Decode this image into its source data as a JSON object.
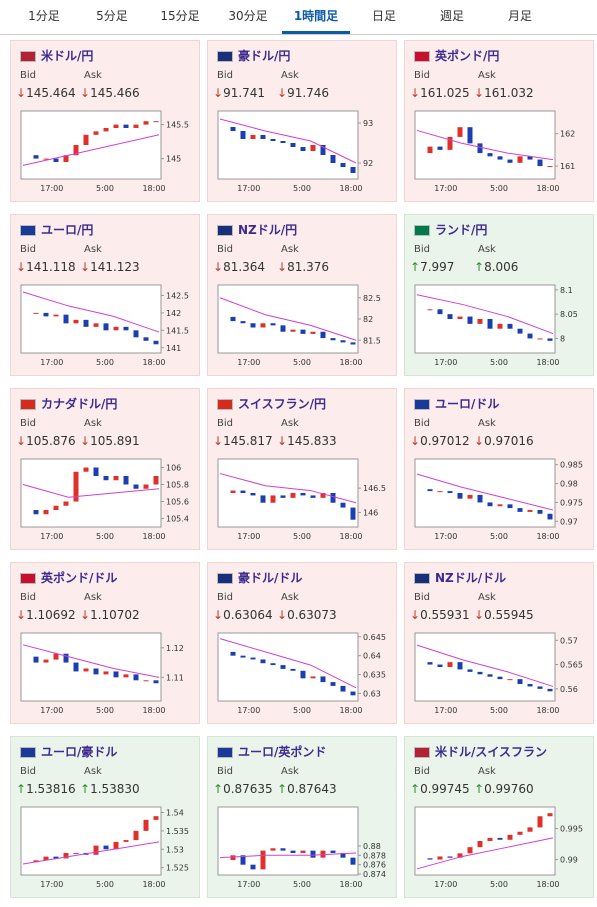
{
  "tabs": [
    "1分足",
    "5分足",
    "15分足",
    "30分足",
    "1時間足",
    "日足",
    "週足",
    "月足"
  ],
  "active_tab": 4,
  "labels": {
    "bid": "Bid",
    "ask": "Ask"
  },
  "time_labels": [
    "17:00",
    "5:00",
    "18:00"
  ],
  "cards": [
    {
      "pair": "米ドル/円",
      "flag": "#b22234",
      "trend": "down",
      "arrow": "↓",
      "bid": "145.464",
      "ask": "145.466",
      "chart": {
        "ylim": [
          144.7,
          145.7
        ],
        "yticks": [
          145,
          145.5
        ],
        "values": [
          145.05,
          145.0,
          145.0,
          144.95,
          145.05,
          145.2,
          145.35,
          145.4,
          145.45,
          145.5,
          145.45,
          145.5,
          145.55,
          145.55
        ],
        "ma": [
          144.9,
          145.05,
          145.2,
          145.35
        ]
      }
    },
    {
      "pair": "豪ドル/円",
      "flag": "#1a2f7a",
      "trend": "down",
      "arrow": "↓",
      "bid": "91.741",
      "ask": "91.746",
      "chart": {
        "ylim": [
          91.6,
          93.3
        ],
        "yticks": [
          92,
          93
        ],
        "values": [
          92.9,
          92.8,
          92.6,
          92.7,
          92.6,
          92.55,
          92.5,
          92.4,
          92.3,
          92.45,
          92.2,
          92.0,
          91.9,
          91.75
        ],
        "ma": [
          93.1,
          92.8,
          92.55,
          92.0
        ]
      }
    },
    {
      "pair": "英ポンド/円",
      "flag": "#c8102e",
      "trend": "down",
      "arrow": "↓",
      "bid": "161.025",
      "ask": "161.032",
      "chart": {
        "ylim": [
          160.6,
          162.7
        ],
        "yticks": [
          161,
          162
        ],
        "values": [
          161.4,
          161.6,
          161.5,
          161.9,
          162.2,
          161.7,
          161.4,
          161.3,
          161.2,
          161.1,
          161.3,
          161.2,
          161.0,
          161.0
        ],
        "ma": [
          162.1,
          161.7,
          161.4,
          161.2
        ]
      }
    },
    {
      "pair": "ユーロ/円",
      "flag": "#1a3a9a",
      "trend": "down",
      "arrow": "↓",
      "bid": "141.118",
      "ask": "141.123",
      "chart": {
        "ylim": [
          140.85,
          142.8
        ],
        "yticks": [
          141,
          141.5,
          142,
          142.5
        ],
        "values": [
          142.0,
          142.0,
          141.9,
          141.95,
          141.7,
          141.8,
          141.6,
          141.7,
          141.5,
          141.6,
          141.5,
          141.3,
          141.2,
          141.1
        ],
        "ma": [
          142.6,
          142.2,
          141.9,
          141.45
        ]
      }
    },
    {
      "pair": "NZドル/円",
      "flag": "#1a2f7a",
      "trend": "down",
      "arrow": "↓",
      "bid": "81.364",
      "ask": "81.376",
      "chart": {
        "ylim": [
          81.2,
          82.8
        ],
        "yticks": [
          81.5,
          82,
          82.5
        ],
        "values": [
          82.05,
          81.95,
          81.9,
          81.8,
          81.9,
          81.85,
          81.7,
          81.75,
          81.65,
          81.7,
          81.55,
          81.5,
          81.45,
          81.4
        ],
        "ma": [
          82.5,
          82.1,
          81.85,
          81.5
        ]
      }
    },
    {
      "pair": "ランド/円",
      "flag": "#007a4d",
      "trend": "up",
      "arrow": "↑",
      "bid": "7.997",
      "ask": "8.006",
      "chart": {
        "ylim": [
          7.97,
          8.11
        ],
        "yticks": [
          8,
          8.05,
          8.1
        ],
        "values": [
          8.06,
          8.06,
          8.05,
          8.04,
          8.045,
          8.03,
          8.04,
          8.02,
          8.03,
          8.02,
          8.01,
          8.0,
          8.0,
          7.995
        ],
        "ma": [
          8.09,
          8.07,
          8.045,
          8.01
        ]
      }
    },
    {
      "pair": "カナダドル/円",
      "flag": "#d52b1e",
      "trend": "down",
      "arrow": "↓",
      "bid": "105.876",
      "ask": "105.891",
      "chart": {
        "ylim": [
          105.3,
          106.1
        ],
        "yticks": [
          105.4,
          105.6,
          105.8,
          106
        ],
        "values": [
          105.5,
          105.45,
          105.5,
          105.55,
          105.6,
          105.95,
          106.0,
          105.9,
          105.85,
          105.9,
          105.8,
          105.75,
          105.8,
          105.9
        ],
        "ma": [
          105.8,
          105.65,
          105.7,
          105.75
        ]
      }
    },
    {
      "pair": "スイスフラン/円",
      "flag": "#d52b1e",
      "trend": "down",
      "arrow": "↓",
      "bid": "145.817",
      "ask": "145.833",
      "chart": {
        "ylim": [
          145.7,
          147.1
        ],
        "yticks": [
          146,
          146.5
        ],
        "values": [
          146.4,
          146.45,
          146.4,
          146.35,
          146.2,
          146.35,
          146.3,
          146.4,
          146.35,
          146.3,
          146.4,
          146.2,
          146.1,
          145.85
        ],
        "ma": [
          146.8,
          146.55,
          146.45,
          146.2
        ]
      }
    },
    {
      "pair": "ユーロ/ドル",
      "flag": "#1a3a9a",
      "trend": "down",
      "arrow": "↓",
      "bid": "0.97012",
      "ask": "0.97016",
      "chart": {
        "ylim": [
          0.9685,
          0.9865
        ],
        "yticks": [
          0.97,
          0.975,
          0.98,
          0.985
        ],
        "values": [
          0.9785,
          0.978,
          0.978,
          0.9775,
          0.976,
          0.977,
          0.975,
          0.974,
          0.9745,
          0.9735,
          0.9725,
          0.973,
          0.972,
          0.9705
        ],
        "ma": [
          0.9825,
          0.979,
          0.976,
          0.973
        ]
      }
    },
    {
      "pair": "英ポンド/ドル",
      "flag": "#c8102e",
      "trend": "down",
      "arrow": "↓",
      "bid": "1.10692",
      "ask": "1.10702",
      "chart": {
        "ylim": [
          1.102,
          1.125
        ],
        "yticks": [
          1.11,
          1.12
        ],
        "values": [
          1.117,
          1.115,
          1.116,
          1.118,
          1.115,
          1.112,
          1.113,
          1.111,
          1.112,
          1.11,
          1.111,
          1.109,
          1.109,
          1.108
        ],
        "ma": [
          1.121,
          1.117,
          1.113,
          1.11
        ]
      }
    },
    {
      "pair": "豪ドル/ドル",
      "flag": "#1a2f7a",
      "trend": "down",
      "arrow": "↓",
      "bid": "0.63064",
      "ask": "0.63073",
      "chart": {
        "ylim": [
          0.628,
          0.646
        ],
        "yticks": [
          0.63,
          0.635,
          0.64,
          0.645
        ],
        "values": [
          0.641,
          0.64,
          0.6395,
          0.639,
          0.638,
          0.6375,
          0.6365,
          0.636,
          0.634,
          0.6345,
          0.633,
          0.632,
          0.6305,
          0.6295
        ],
        "ma": [
          0.6445,
          0.641,
          0.6375,
          0.6315
        ]
      }
    },
    {
      "pair": "NZドル/ドル",
      "flag": "#1a2f7a",
      "trend": "down",
      "arrow": "↓",
      "bid": "0.55931",
      "ask": "0.55945",
      "chart": {
        "ylim": [
          0.5575,
          0.5715
        ],
        "yticks": [
          0.56,
          0.565,
          0.57
        ],
        "values": [
          0.5655,
          0.565,
          0.5645,
          0.5655,
          0.564,
          0.5635,
          0.563,
          0.5625,
          0.562,
          0.562,
          0.561,
          0.5605,
          0.56,
          0.5595
        ],
        "ma": [
          0.569,
          0.566,
          0.5635,
          0.5605
        ]
      }
    },
    {
      "pair": "ユーロ/豪ドル",
      "flag": "#1a3a9a",
      "trend": "up",
      "arrow": "↑",
      "bid": "1.53816",
      "ask": "1.53830",
      "chart": {
        "ylim": [
          1.523,
          1.5415
        ],
        "yticks": [
          1.525,
          1.53,
          1.535,
          1.54
        ],
        "values": [
          1.5265,
          1.527,
          1.528,
          1.5275,
          1.529,
          1.529,
          1.5285,
          1.531,
          1.53,
          1.532,
          1.5325,
          1.535,
          1.538,
          1.539
        ],
        "ma": [
          1.526,
          1.528,
          1.53,
          1.532
        ]
      }
    },
    {
      "pair": "ユーロ/英ポンド",
      "flag": "#1a3a9a",
      "trend": "up",
      "arrow": "↑",
      "bid": "0.87635",
      "ask": "0.87643",
      "chart": {
        "ylim": [
          0.8738,
          0.8883
        ],
        "yticks": [
          0.874,
          0.876,
          0.878,
          0.88
        ],
        "values": [
          0.877,
          0.878,
          0.876,
          0.875,
          0.879,
          0.8795,
          0.879,
          0.8785,
          0.879,
          0.8775,
          0.879,
          0.8785,
          0.8775,
          0.876
        ],
        "ma": [
          0.8775,
          0.878,
          0.878,
          0.8785
        ]
      }
    },
    {
      "pair": "米ドル/スイスフラン",
      "flag": "#b22234",
      "trend": "up",
      "arrow": "↑",
      "bid": "0.99745",
      "ask": "0.99760",
      "chart": {
        "ylim": [
          0.9875,
          0.9985
        ],
        "yticks": [
          0.99,
          0.995
        ],
        "values": [
          0.9902,
          0.99,
          0.9905,
          0.9903,
          0.991,
          0.992,
          0.993,
          0.9935,
          0.9932,
          0.994,
          0.9945,
          0.9952,
          0.997,
          0.9975
        ],
        "ma": [
          0.9885,
          0.9905,
          0.992,
          0.9935
        ]
      }
    }
  ]
}
